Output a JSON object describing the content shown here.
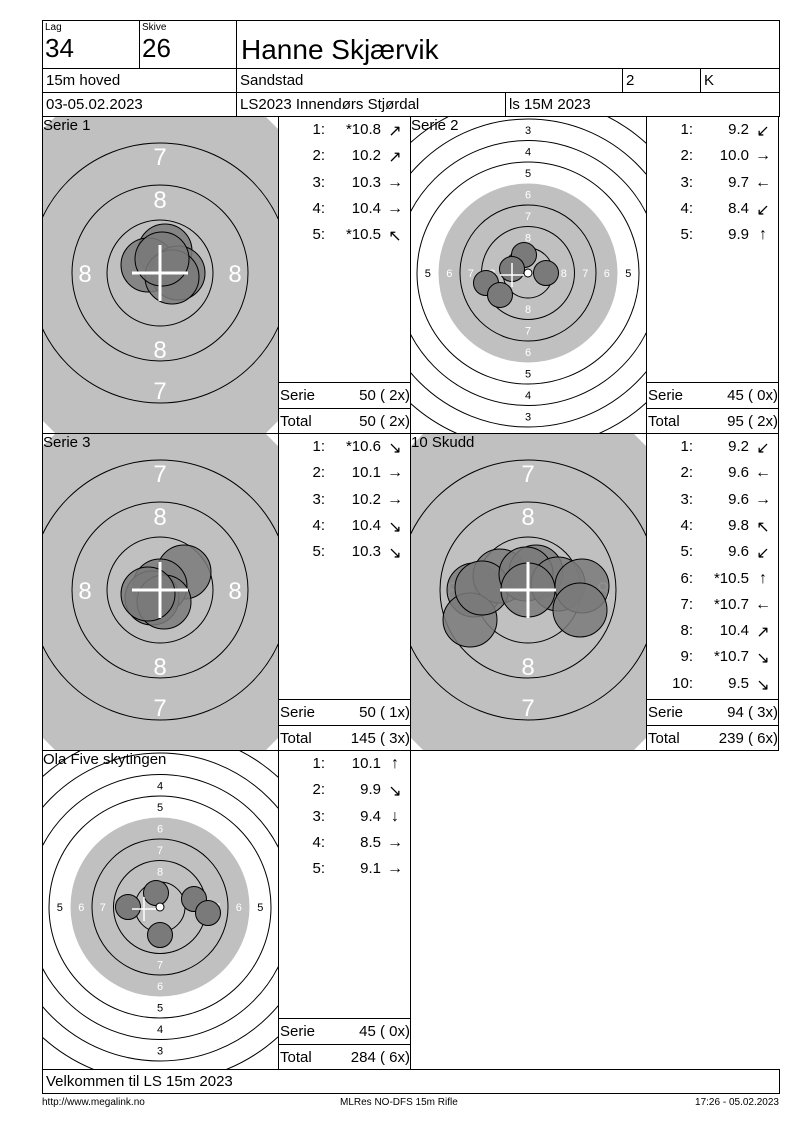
{
  "header": {
    "lag_label": "Lag",
    "lag": "34",
    "skive_label": "Skive",
    "skive": "26",
    "name": "Hanne Skjærvik",
    "class": "15m hoved",
    "club": "Sandstad",
    "field_2": "2",
    "field_k": "K",
    "date": "03-05.02.2023",
    "event": "LS2023 Innendørs Stjørdal",
    "program": "ls 15M 2023"
  },
  "panels": [
    {
      "title": "Serie 1",
      "shots": [
        {
          "n": "1:",
          "v": "*10.8",
          "dir": "↗"
        },
        {
          "n": "2:",
          "v": "10.2",
          "dir": "↗"
        },
        {
          "n": "3:",
          "v": "10.3",
          "dir": "→"
        },
        {
          "n": "4:",
          "v": "10.4",
          "dir": "→"
        },
        {
          "n": "5:",
          "v": "*10.5",
          "dir": "↖"
        }
      ],
      "serie_label": "Serie",
      "serie": "50 ( 2x)",
      "total_label": "Total",
      "total": "50 ( 2x)"
    },
    {
      "title": "Serie 2",
      "shots": [
        {
          "n": "1:",
          "v": "9.2",
          "dir": "↙"
        },
        {
          "n": "2:",
          "v": "10.0",
          "dir": "→"
        },
        {
          "n": "3:",
          "v": "9.7",
          "dir": "←"
        },
        {
          "n": "4:",
          "v": "8.4",
          "dir": "↙"
        },
        {
          "n": "5:",
          "v": "9.9",
          "dir": "↑"
        }
      ],
      "serie_label": "Serie",
      "serie": "45 ( 0x)",
      "total_label": "Total",
      "total": "95 ( 2x)"
    },
    {
      "title": "Serie 3",
      "shots": [
        {
          "n": "1:",
          "v": "*10.6",
          "dir": "↘"
        },
        {
          "n": "2:",
          "v": "10.1",
          "dir": "→"
        },
        {
          "n": "3:",
          "v": "10.2",
          "dir": "→"
        },
        {
          "n": "4:",
          "v": "10.4",
          "dir": "↘"
        },
        {
          "n": "5:",
          "v": "10.3",
          "dir": "↘"
        }
      ],
      "serie_label": "Serie",
      "serie": "50 ( 1x)",
      "total_label": "Total",
      "total": "145 ( 3x)"
    },
    {
      "title": "10 Skudd",
      "shots": [
        {
          "n": "1:",
          "v": "9.2",
          "dir": "↙"
        },
        {
          "n": "2:",
          "v": "9.6",
          "dir": "←"
        },
        {
          "n": "3:",
          "v": "9.6",
          "dir": "→"
        },
        {
          "n": "4:",
          "v": "9.8",
          "dir": "↖"
        },
        {
          "n": "5:",
          "v": "9.6",
          "dir": "↙"
        },
        {
          "n": "6:",
          "v": "*10.5",
          "dir": "↑"
        },
        {
          "n": "7:",
          "v": "*10.7",
          "dir": "←"
        },
        {
          "n": "8:",
          "v": "10.4",
          "dir": "↗"
        },
        {
          "n": "9:",
          "v": "*10.7",
          "dir": "↘"
        },
        {
          "n": "10:",
          "v": "9.5",
          "dir": "↘"
        }
      ],
      "serie_label": "Serie",
      "serie": "94 ( 3x)",
      "total_label": "Total",
      "total": "239 ( 6x)"
    },
    {
      "title": "Ola Five skytingen",
      "shots": [
        {
          "n": "1:",
          "v": "10.1",
          "dir": "↑"
        },
        {
          "n": "2:",
          "v": "9.9",
          "dir": "↘"
        },
        {
          "n": "3:",
          "v": "9.4",
          "dir": "↓"
        },
        {
          "n": "4:",
          "v": "8.5",
          "dir": "→"
        },
        {
          "n": "5:",
          "v": "9.1",
          "dir": "→"
        }
      ],
      "serie_label": "Serie",
      "serie": "45 ( 0x)",
      "total_label": "Total",
      "total": "284 ( 6x)"
    }
  ],
  "welcome": "Velkommen til LS 15m 2023",
  "footer": {
    "url": "http://www.megalink.no",
    "software": "MLRes NO-DFS 15m Rifle",
    "timestamp": "17:26 - 05.02.2023"
  },
  "colors": {
    "target_grey": "#c0c0c0",
    "shot": "#7a7a7a"
  }
}
